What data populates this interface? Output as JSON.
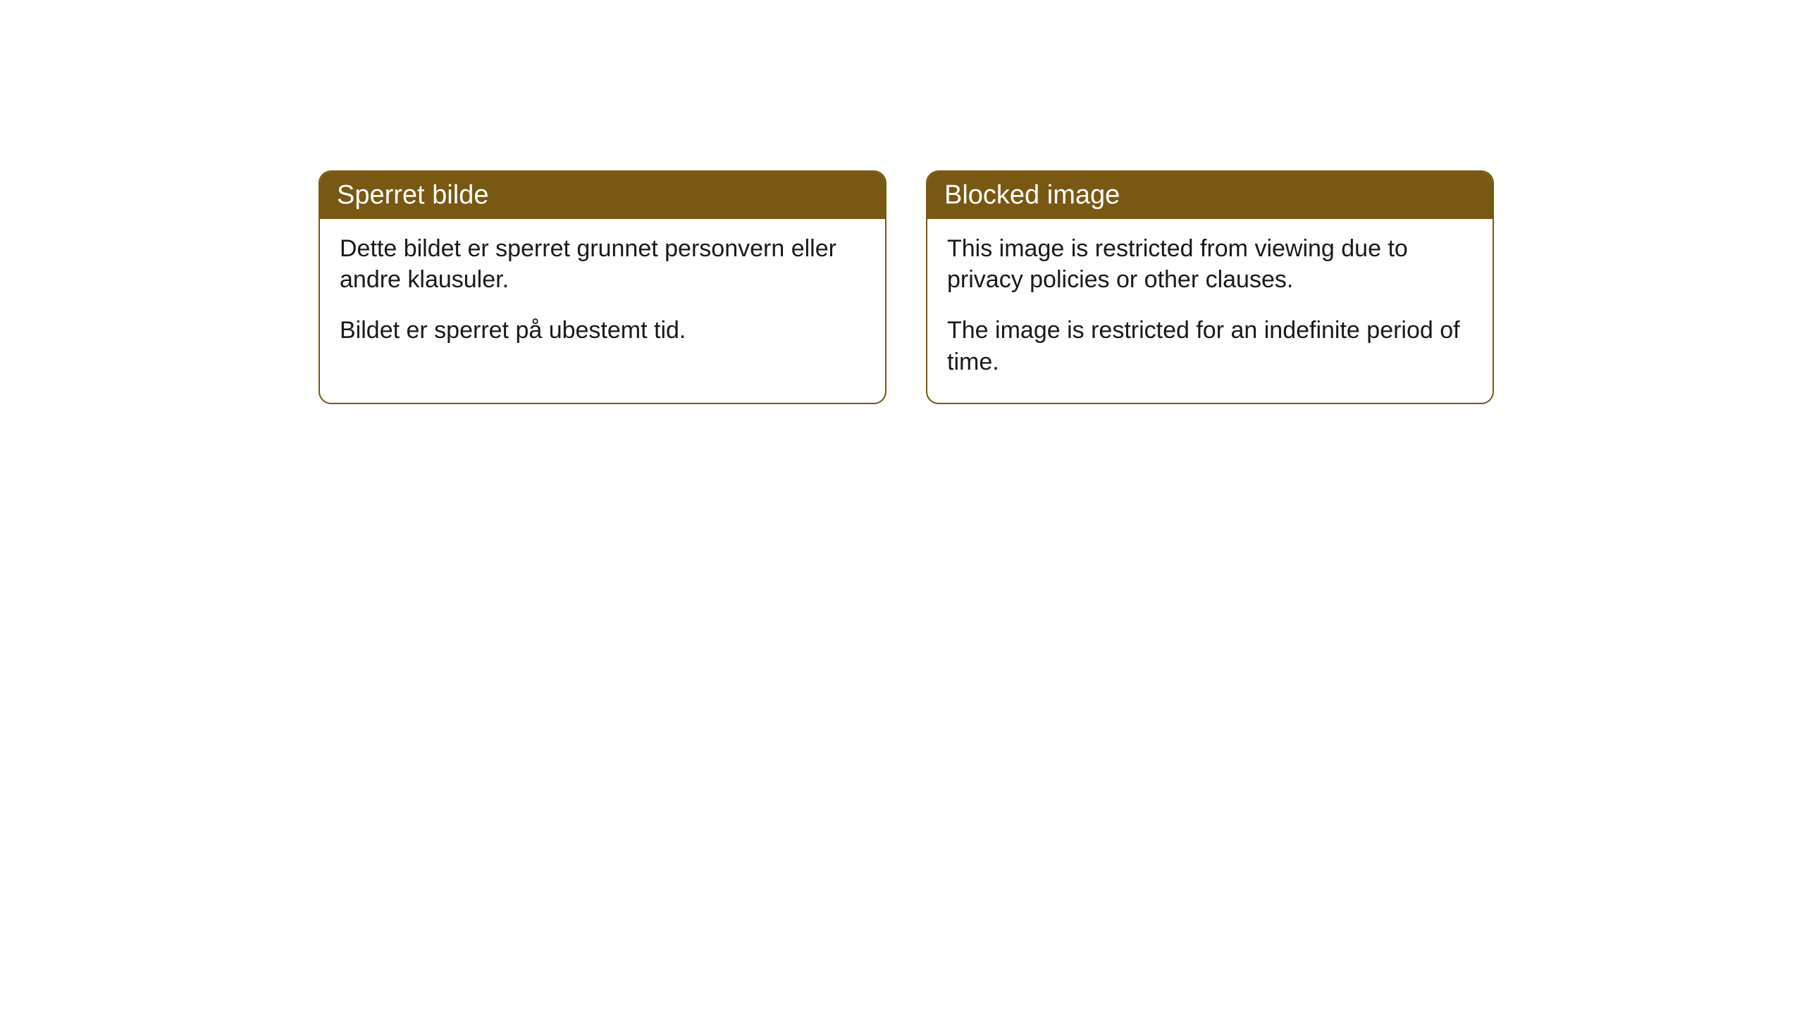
{
  "cards": [
    {
      "title": "Sperret bilde",
      "paragraph1": "Dette bildet er sperret grunnet personvern eller andre klausuler.",
      "paragraph2": "Bildet er sperret på ubestemt tid."
    },
    {
      "title": "Blocked image",
      "paragraph1": "This image is restricted from viewing due to privacy policies or other clauses.",
      "paragraph2": "The image is restricted for an indefinite period of time."
    }
  ],
  "styling": {
    "header_bg_color": "#785812",
    "header_text_color": "#ffffff",
    "border_color": "#785812",
    "body_bg_color": "#ffffff",
    "body_text_color": "#1a1a1a",
    "border_radius": 18,
    "header_fontsize": 38,
    "body_fontsize": 34
  }
}
